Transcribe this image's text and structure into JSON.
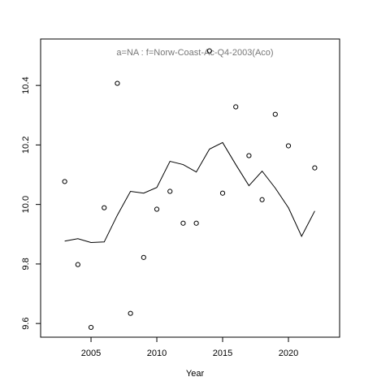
{
  "chart_data": {
    "type": "line",
    "title": "a=NA  : f=Norw-Coast-Ac-Q4-2003(Aco)",
    "x_label": "Year",
    "x": [
      2003,
      2004,
      2005,
      2006,
      2007,
      2008,
      2009,
      2010,
      2011,
      2012,
      2013,
      2014,
      2015,
      2016,
      2017,
      2018,
      2019,
      2020,
      2021,
      2022
    ],
    "series": [
      {
        "style": "points",
        "color": "#000000",
        "values": [
          10.077,
          9.798,
          9.587,
          9.989,
          10.407,
          9.634,
          9.822,
          9.984,
          10.044,
          9.937,
          9.937,
          10.516,
          10.038,
          10.328,
          10.164,
          10.016,
          10.303,
          10.197,
          null,
          10.123
        ]
      },
      {
        "style": "line",
        "color": "#000000",
        "values": [
          9.877,
          9.885,
          9.872,
          9.874,
          9.964,
          10.044,
          10.038,
          10.057,
          10.145,
          10.134,
          10.109,
          10.186,
          10.208,
          10.134,
          10.063,
          10.112,
          10.055,
          9.989,
          9.893,
          9.978
        ]
      }
    ],
    "xlim": [
      2001.17,
      2023.89
    ],
    "ylim": [
      9.554,
      10.556
    ],
    "xticks": [
      2005,
      2010,
      2015,
      2020
    ],
    "yticks": [
      {
        "value": 9.6,
        "label": "9.6"
      },
      {
        "value": 9.8,
        "label": "9.8"
      },
      {
        "value": 10.0,
        "label": "10.0"
      },
      {
        "value": 10.2,
        "label": "10.2"
      },
      {
        "value": 10.4,
        "label": "10.4"
      }
    ],
    "grid": false
  }
}
